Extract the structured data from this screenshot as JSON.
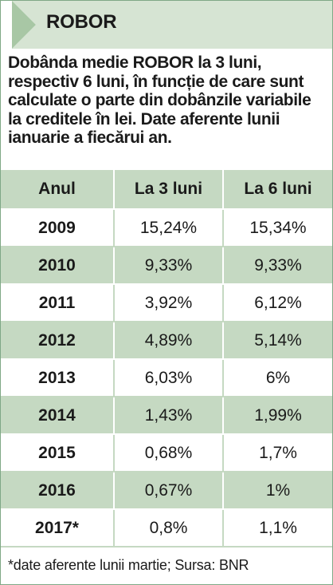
{
  "header": {
    "title": "ROBOR"
  },
  "intro": "Dobânda medie ROBOR la 3 luni, respectiv 6 luni, în funcție de care sunt calculate o parte din dobânzile variabile la creditele în lei. Date aferente lunii ianuarie a fiecărui an.",
  "table": {
    "columns": [
      "Anul",
      "La 3 luni",
      "La 6 luni"
    ],
    "rows": [
      {
        "year": "2009",
        "m3": "15,24%",
        "m6": "15,34%"
      },
      {
        "year": "2010",
        "m3": "9,33%",
        "m6": "9,33%"
      },
      {
        "year": "2011",
        "m3": "3,92%",
        "m6": "6,12%"
      },
      {
        "year": "2012",
        "m3": "4,89%",
        "m6": "5,14%"
      },
      {
        "year": "2013",
        "m3": "6,03%",
        "m6": "6%"
      },
      {
        "year": "2014",
        "m3": "1,43%",
        "m6": "1,99%"
      },
      {
        "year": "2015",
        "m3": "0,68%",
        "m6": "1,7%"
      },
      {
        "year": "2016",
        "m3": "0,67%",
        "m6": "1%"
      },
      {
        "year": "2017*",
        "m3": "0,8%",
        "m6": "1,1%"
      }
    ]
  },
  "footnote": "*date aferente lunii martie; Sursa: BNR",
  "colors": {
    "header_bg": "#d6e4d3",
    "band": "#c5d9c2",
    "arrow": "#a8c7a5"
  }
}
